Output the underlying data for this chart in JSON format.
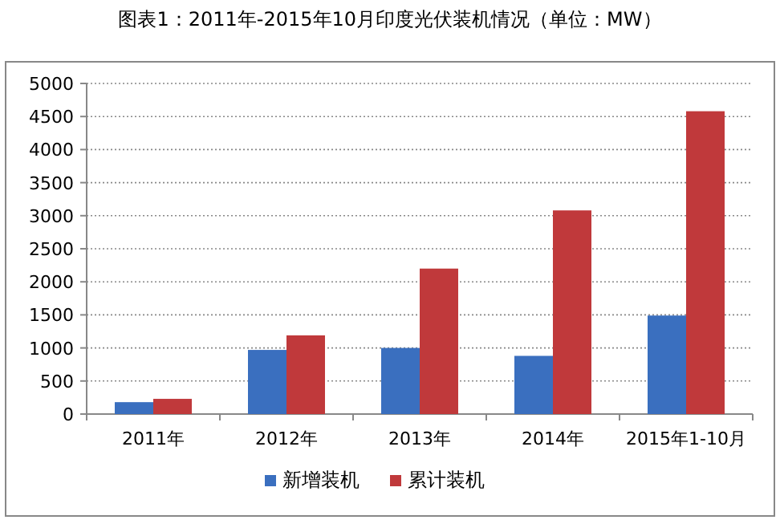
{
  "chart_data": {
    "type": "bar",
    "title": "图表1：2011年-2015年10月印度光伏装机情况（单位：MW）",
    "categories": [
      "2011年",
      "2012年",
      "2013年",
      "2014年",
      "2015年1-10月"
    ],
    "series": [
      {
        "name": "新增装机",
        "color": "#3a6fbf",
        "values": [
          180,
          970,
          1000,
          880,
          1490
        ]
      },
      {
        "name": "累计装机",
        "color": "#c0393b",
        "values": [
          230,
          1190,
          2200,
          3080,
          4580
        ]
      }
    ],
    "ylim": [
      0,
      5000
    ],
    "yticks": [
      0,
      500,
      1000,
      1500,
      2000,
      2500,
      3000,
      3500,
      4000,
      4500,
      5000
    ],
    "grid": "y",
    "legend": "bottom"
  }
}
